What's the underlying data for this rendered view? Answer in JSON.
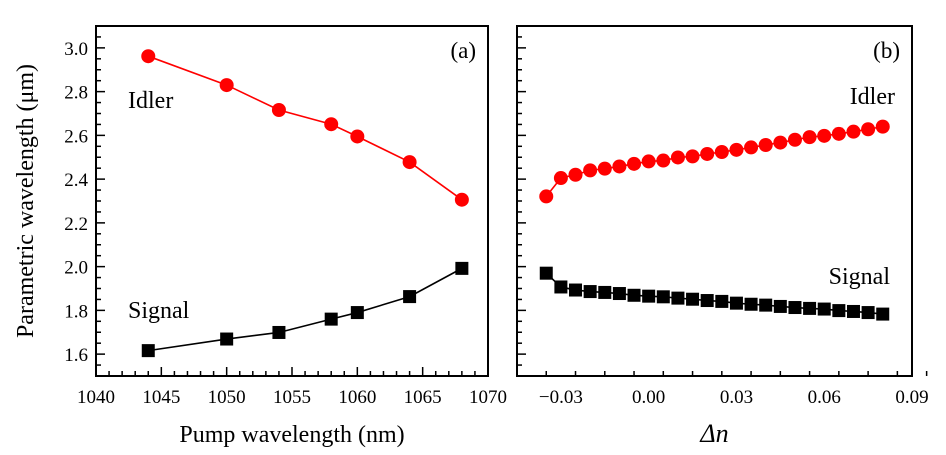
{
  "chart_data": [
    {
      "type": "line",
      "panel_label": "(a)",
      "xlabel": "Pump wavelength (nm)",
      "ylabel": "Parametric wavelength (μm)",
      "xlim": [
        1040,
        1070
      ],
      "ylim": [
        1.5,
        3.1
      ],
      "xticks": [
        "1040",
        "1045",
        "1050",
        "1055",
        "1060",
        "1065",
        "1070"
      ],
      "yticks": [
        "1.6",
        "1.8",
        "2.0",
        "2.2",
        "2.4",
        "2.6",
        "2.8",
        "3.0"
      ],
      "grid": false,
      "x": [
        1044,
        1050,
        1054,
        1058,
        1060,
        1064,
        1068
      ],
      "series": [
        {
          "name": "Idler",
          "color": "#ff0000",
          "marker": "circle",
          "values": [
            2.962,
            2.83,
            2.716,
            2.651,
            2.595,
            2.478,
            2.306
          ]
        },
        {
          "name": "Signal",
          "color": "#000000",
          "marker": "square",
          "values": [
            1.616,
            1.669,
            1.699,
            1.76,
            1.79,
            1.863,
            1.992
          ]
        }
      ]
    },
    {
      "type": "line",
      "panel_label": "(b)",
      "xlabel": "Δn",
      "ylabel": "",
      "xlim": [
        -0.045,
        0.09
      ],
      "ylim": [
        1.5,
        3.1
      ],
      "xticks": [
        "−0.03",
        "0.00",
        "0.03",
        "0.06",
        "0.09"
      ],
      "yticks": [],
      "grid": false,
      "x": [
        -0.035,
        -0.03,
        -0.025,
        -0.02,
        -0.015,
        -0.01,
        -0.005,
        0,
        0.005,
        0.01,
        0.015,
        0.02,
        0.025,
        0.03,
        0.035,
        0.04,
        0.045,
        0.05,
        0.055,
        0.06,
        0.065,
        0.07,
        0.075,
        0.08
      ],
      "series": [
        {
          "name": "Idler",
          "color": "#ff0000",
          "marker": "circle",
          "values": [
            2.321,
            2.405,
            2.42,
            2.44,
            2.448,
            2.458,
            2.47,
            2.481,
            2.485,
            2.499,
            2.504,
            2.515,
            2.524,
            2.534,
            2.545,
            2.556,
            2.567,
            2.58,
            2.592,
            2.598,
            2.607,
            2.617,
            2.628,
            2.64
          ]
        },
        {
          "name": "Signal",
          "color": "#000000",
          "marker": "square",
          "values": [
            1.97,
            1.907,
            1.893,
            1.886,
            1.882,
            1.877,
            1.869,
            1.865,
            1.862,
            1.856,
            1.851,
            1.845,
            1.841,
            1.833,
            1.828,
            1.824,
            1.818,
            1.813,
            1.809,
            1.806,
            1.799,
            1.795,
            1.79,
            1.783
          ]
        }
      ]
    }
  ]
}
